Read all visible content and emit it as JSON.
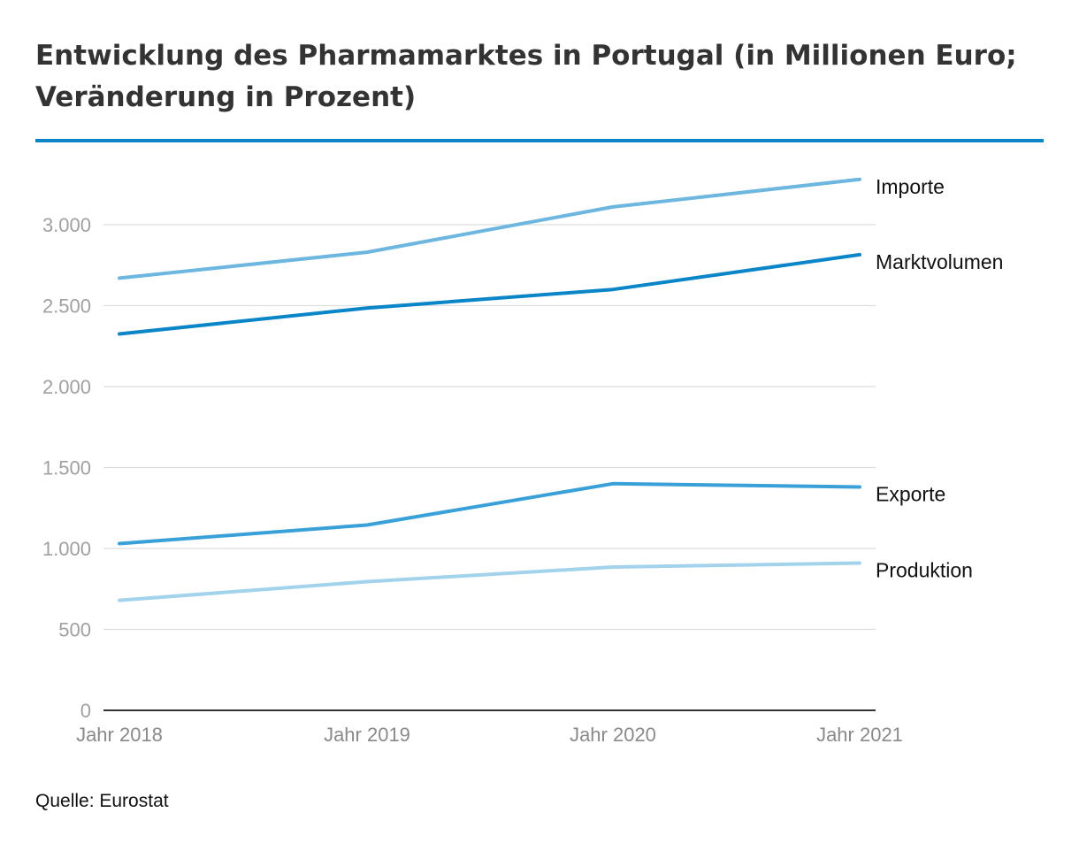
{
  "colors": {
    "rule": "#0a85c8",
    "grid": "#dddddd",
    "axis": "#333333",
    "importe": "#6cb6e0",
    "marktvolumen": "#0a85c8",
    "exporte": "#3aa0d8",
    "produktion": "#a3d3ec"
  },
  "chart_data": {
    "type": "line",
    "title": "Entwicklung des Pharmamarktes in Portugal (in Millionen Euro; Veränderung in Prozent)",
    "xlabel": "",
    "ylabel": "",
    "categories": [
      "Jahr 2018",
      "Jahr 2019",
      "Jahr 2020",
      "Jahr 2021"
    ],
    "ylim": [
      0,
      3400
    ],
    "yticks": [
      {
        "value": 0,
        "label": "0"
      },
      {
        "value": 500,
        "label": "500"
      },
      {
        "value": 1000,
        "label": "1.000"
      },
      {
        "value": 1500,
        "label": "1.500"
      },
      {
        "value": 2000,
        "label": "2.000"
      },
      {
        "value": 2500,
        "label": "2.500"
      },
      {
        "value": 3000,
        "label": "3.000"
      }
    ],
    "grid": true,
    "legend": "labels at line ends",
    "series": [
      {
        "name": "Importe",
        "color": "#6cb6e0",
        "values": [
          2670,
          2830,
          3110,
          3280
        ]
      },
      {
        "name": "Marktvolumen",
        "color": "#0a85c8",
        "values": [
          2325,
          2485,
          2600,
          2815
        ]
      },
      {
        "name": "Exporte",
        "color": "#3aa0d8",
        "values": [
          1030,
          1145,
          1400,
          1380
        ]
      },
      {
        "name": "Produktion",
        "color": "#a3d3ec",
        "values": [
          680,
          795,
          885,
          910
        ]
      }
    ]
  },
  "source": "Quelle: Eurostat"
}
